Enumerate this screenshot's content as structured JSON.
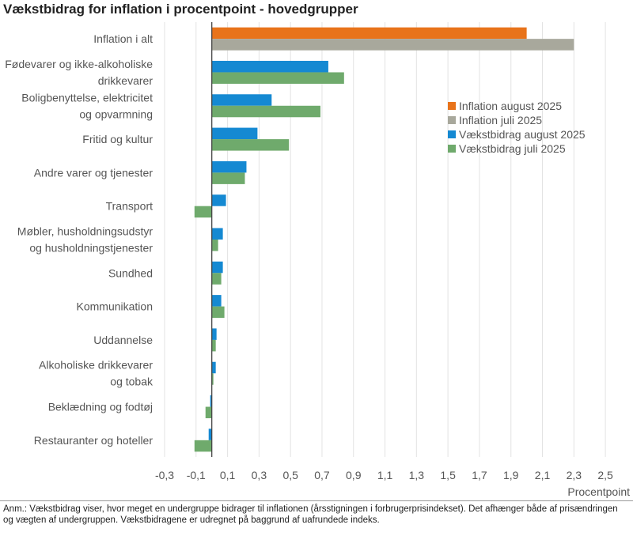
{
  "title": "Vækstbidrag for inflation i procentpoint - hovedgrupper",
  "footnote": "Anm.: Vækstbidrag viser, hvor meget en undergruppe bidrager til inflationen (årsstigningen i forbrugerprisindekset). Det afhænger både af prisændringen og vægten af undergruppen. Vækstbidragene er udregnet på baggrund af uafrundede indeks.",
  "chart_data": {
    "type": "bar",
    "orientation": "horizontal",
    "title": "Vækstbidrag for inflation i procentpoint - hovedgrupper",
    "xlabel": "Procentpoint",
    "xlim": [
      -0.3,
      2.6
    ],
    "xticks": [
      -0.3,
      -0.1,
      0.1,
      0.3,
      0.5,
      0.7,
      0.9,
      1.1,
      1.3,
      1.5,
      1.7,
      1.9,
      2.1,
      2.3,
      2.5
    ],
    "xtick_labels": [
      "-0,3",
      "-0,1",
      "0,1",
      "0,3",
      "0,5",
      "0,7",
      "0,9",
      "1,1",
      "1,3",
      "1,5",
      "1,7",
      "1,9",
      "2,1",
      "2,3",
      "2,5"
    ],
    "grid": "vertical",
    "legend_position": "right",
    "categories": [
      [
        "Inflation i alt"
      ],
      [
        "Fødevarer og ikke-alkoholiske",
        "drikkevarer"
      ],
      [
        "Boligbenyttelse, elektricitet",
        "og opvarmning"
      ],
      [
        "Fritid og kultur"
      ],
      [
        "Andre varer og tjenester"
      ],
      [
        "Transport"
      ],
      [
        "Møbler, husholdningsudstyr",
        "og husholdningstjenester"
      ],
      [
        "Sundhed"
      ],
      [
        "Kommunikation"
      ],
      [
        "Uddannelse"
      ],
      [
        "Alkoholiske drikkevarer",
        "og tobak"
      ],
      [
        "Beklædning og fodtøj"
      ],
      [
        "Restauranter og hoteller"
      ]
    ],
    "series": [
      {
        "name": "Inflation august 2025",
        "color": "#E8731A",
        "values": [
          2.0,
          null,
          null,
          null,
          null,
          null,
          null,
          null,
          null,
          null,
          null,
          null,
          null
        ]
      },
      {
        "name": "Inflation juli 2025",
        "color": "#A8A89C",
        "values": [
          2.3,
          null,
          null,
          null,
          null,
          null,
          null,
          null,
          null,
          null,
          null,
          null,
          null
        ]
      },
      {
        "name": "Vækstbidrag august 2025",
        "color": "#1589D2",
        "values": [
          null,
          0.74,
          0.38,
          0.29,
          0.22,
          0.09,
          0.07,
          0.07,
          0.06,
          0.03,
          0.025,
          -0.01,
          -0.02
        ]
      },
      {
        "name": "Vækstbidrag juli 2025",
        "color": "#6FAA6C",
        "values": [
          null,
          0.84,
          0.69,
          0.49,
          0.21,
          -0.11,
          0.04,
          0.06,
          0.08,
          0.025,
          0.01,
          -0.04,
          -0.11
        ]
      }
    ]
  }
}
